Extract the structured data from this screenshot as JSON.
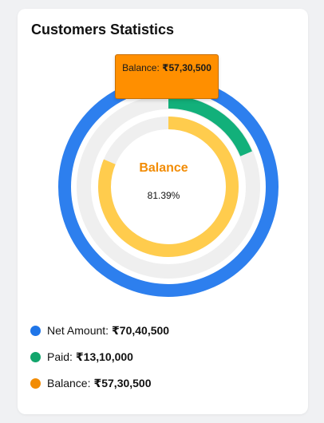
{
  "card": {
    "title": "Customers Statistics"
  },
  "tooltip": {
    "label": "Balance:",
    "value": "₹57,30,500"
  },
  "center": {
    "label": "Balance",
    "value": "81.39%"
  },
  "legend": [
    {
      "label": "Net Amount:",
      "value": "₹70,40,500",
      "color": "#1f75e8"
    },
    {
      "label": "Paid:",
      "value": "₹13,10,000",
      "color": "#12a56c"
    },
    {
      "label": "Balance:",
      "value": "₹57,30,500",
      "color": "#f28c05"
    }
  ],
  "chart_data": {
    "type": "radialBar",
    "title": "Customers Statistics",
    "series": [
      {
        "name": "Net Amount",
        "value": 7040500,
        "percent": 100,
        "color": "#2d7fee"
      },
      {
        "name": "Paid",
        "value": 1310000,
        "percent": 18.61,
        "color": "#12b07a"
      },
      {
        "name": "Balance",
        "value": 5730500,
        "percent": 81.39,
        "color": "#ffcc4d"
      }
    ],
    "track_color": "#efefef",
    "center_label": "Balance",
    "center_value": "81.39%"
  }
}
